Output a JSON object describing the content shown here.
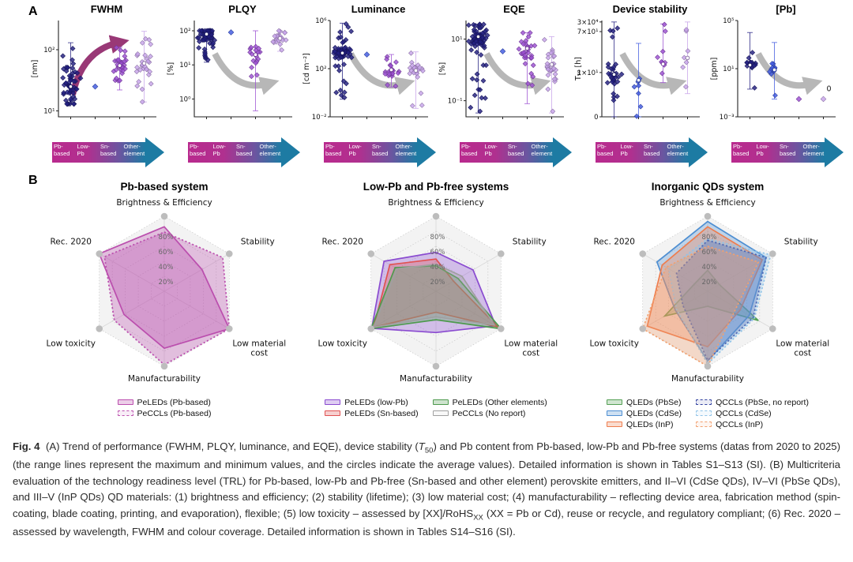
{
  "figure": {
    "panel_a_label": "A",
    "panel_b_label": "B"
  },
  "category_arrow": {
    "labels": [
      [
        "Pb-",
        "based"
      ],
      [
        "Low-",
        "Pb"
      ],
      [
        "Sn-",
        "based"
      ],
      [
        "Other-",
        "element"
      ]
    ],
    "gradient": [
      "#b92a8e",
      "#1d7ba3"
    ]
  },
  "chart_data": [
    {
      "type": "strip",
      "title": "FWHM",
      "ylabel": "[nm]",
      "yscale": "log",
      "ylim": [
        8,
        300
      ],
      "yticks": [
        {
          "v": 10,
          "label": "10¹"
        },
        {
          "v": 100,
          "label": "10²"
        }
      ],
      "trend": "up",
      "trend_color": "#8e2368",
      "groups": [
        {
          "category": "Pb-based",
          "color": "#221e80",
          "min": 13,
          "max": 130,
          "avg": 25,
          "n": 55
        },
        {
          "category": "Low-Pb",
          "color": "#3f59e0",
          "min": 25,
          "max": 25,
          "avg": 25,
          "n": 1
        },
        {
          "category": "Sn-based",
          "color": "#9c4fd2",
          "min": 22,
          "max": 110,
          "avg": 55,
          "n": 30
        },
        {
          "category": "Other-element",
          "color": "#c7a4ea",
          "min": 14,
          "max": 200,
          "avg": 60,
          "n": 28
        }
      ]
    },
    {
      "type": "strip",
      "title": "PLQY",
      "ylabel": "[%]",
      "yscale": "log",
      "ylim": [
        0.3,
        200
      ],
      "yticks": [
        {
          "v": 1,
          "label": "10⁰"
        },
        {
          "v": 10,
          "label": "10¹"
        },
        {
          "v": 100,
          "label": "10²"
        }
      ],
      "trend": "down",
      "trend_color": "#b0b0b0",
      "groups": [
        {
          "category": "Pb-based",
          "color": "#221e80",
          "min": 12,
          "max": 100,
          "avg": 80,
          "n": 70
        },
        {
          "category": "Low-Pb",
          "color": "#3f59e0",
          "min": 90,
          "max": 90,
          "avg": 90,
          "n": 1
        },
        {
          "category": "Sn-based",
          "color": "#9c4fd2",
          "min": 0.45,
          "max": 100,
          "avg": 20,
          "n": 18
        },
        {
          "category": "Other-element",
          "color": "#c7a4ea",
          "min": 25,
          "max": 100,
          "avg": 60,
          "n": 22
        }
      ]
    },
    {
      "type": "strip",
      "title": "Luminance",
      "ylabel": "[cd m⁻²]",
      "yscale": "log",
      "ylim": [
        0.01,
        1000000
      ],
      "yticks": [
        {
          "v": 0.01,
          "label": "10⁻²"
        },
        {
          "v": 100,
          "label": "10²"
        },
        {
          "v": 1000000,
          "label": "10⁶"
        }
      ],
      "trend": "down",
      "trend_color": "#b0b0b0",
      "groups": [
        {
          "category": "Pb-based",
          "color": "#221e80",
          "min": 0.3,
          "max": 600000,
          "avg": 2000,
          "n": 75
        },
        {
          "category": "Low-Pb",
          "color": "#3f59e0",
          "min": 1500,
          "max": 1500,
          "avg": 1500,
          "n": 1
        },
        {
          "category": "Sn-based",
          "color": "#9c4fd2",
          "min": 3,
          "max": 1500,
          "avg": 80,
          "n": 22
        },
        {
          "category": "Other-element",
          "color": "#c7a4ea",
          "min": 0.05,
          "max": 2500,
          "avg": 70,
          "n": 26
        }
      ]
    },
    {
      "type": "strip",
      "title": "EQE",
      "ylabel": "[%]",
      "yscale": "log",
      "ylim": [
        0.03,
        40
      ],
      "yticks": [
        {
          "v": 0.1,
          "label": "10⁻¹"
        },
        {
          "v": 10,
          "label": "10¹"
        }
      ],
      "trend": "down",
      "trend_color": "#b0b0b0",
      "groups": [
        {
          "category": "Pb-based",
          "color": "#221e80",
          "min": 0.04,
          "max": 30,
          "avg": 12,
          "n": 75
        },
        {
          "category": "Low-Pb",
          "color": "#3f59e0",
          "min": 4,
          "max": 4,
          "avg": 4,
          "n": 1
        },
        {
          "category": "Sn-based",
          "color": "#9c4fd2",
          "min": 0.08,
          "max": 16,
          "avg": 5,
          "n": 30
        },
        {
          "category": "Other-element",
          "color": "#c7a4ea",
          "min": 0.04,
          "max": 12,
          "avg": 1.5,
          "n": 30
        }
      ]
    },
    {
      "type": "strip",
      "title": "Device stability",
      "ylabel": "T₅₀ [h]",
      "yscale": "broken-log",
      "ylim": [
        0.05,
        40000
      ],
      "yticks": [
        {
          "v": 30000,
          "label": "3×10⁴",
          "pos": 0.985
        },
        {
          "v": 70,
          "label": "7×10¹",
          "pos": 0.885
        },
        {
          "v": 10,
          "label": "1×10¹",
          "pos": 0.46
        },
        {
          "v": 0.05,
          "label": "0",
          "pos": 0
        }
      ],
      "trend": "down",
      "trend_color": "#b0b0b0",
      "groups": [
        {
          "category": "Pb-based",
          "color": "#221e80",
          "min": 0.05,
          "max": 30000,
          "avg": 8,
          "n": 32
        },
        {
          "category": "Low-Pb",
          "color": "#3f59e0",
          "min": 0.05,
          "max": 40,
          "avg": 4,
          "n": 8
        },
        {
          "category": "Sn-based",
          "color": "#9c4fd2",
          "min": 3,
          "max": 9000,
          "avg": 15,
          "n": 9
        },
        {
          "category": "Other-element",
          "color": "#c7a4ea",
          "min": 0.8,
          "max": 30000,
          "avg": 20,
          "n": 7
        }
      ]
    },
    {
      "type": "strip",
      "title": "[Pb]",
      "ylabel": "[ppm]",
      "yscale": "log",
      "ylim": [
        0.001,
        100000
      ],
      "yticks": [
        {
          "v": 0.001,
          "label": "10⁻³"
        },
        {
          "v": 10,
          "label": "10¹"
        },
        {
          "v": 100000,
          "label": "10⁵"
        }
      ],
      "trend": "down",
      "trend_color": "#b0b0b0",
      "annotations": [
        {
          "text": "0",
          "group": 3,
          "v": 0.03
        }
      ],
      "groups": [
        {
          "category": "Pb-based",
          "color": "#221e80",
          "min": 0.2,
          "max": 10000,
          "avg": 20,
          "n": 14
        },
        {
          "category": "Low-Pb",
          "color": "#3f59e0",
          "min": 0.03,
          "max": 1500,
          "avg": 8,
          "n": 12
        },
        {
          "category": "Sn-based",
          "color": "#9c4fd2",
          "min": 0.03,
          "max": 0.03,
          "avg": 0.03,
          "n": 1
        },
        {
          "category": "Other-element",
          "color": "#c7a4ea",
          "min": 0.03,
          "max": 0.03,
          "avg": 0.03,
          "n": 1
        }
      ]
    },
    {
      "type": "radar",
      "title": "Pb-based system",
      "axes": [
        "Brightness & Efficiency",
        "Stability",
        "Low material cost",
        "Manufacturability",
        "Low toxicity",
        "Rec. 2020"
      ],
      "rings": [
        20,
        40,
        60,
        80,
        100
      ],
      "ring_labels": [
        "20%",
        "40%",
        "60%",
        "80%"
      ],
      "series": [
        {
          "name": "PeLEDs (Pb-based)",
          "color": "#bb4fae",
          "style": "solid",
          "values": [
            86,
            58,
            100,
            76,
            62,
            100
          ]
        },
        {
          "name": "PeCCLs (Pb-based)",
          "color": "#bb4fae",
          "style": "dotted",
          "values": [
            79,
            90,
            100,
            98,
            77,
            92
          ]
        }
      ]
    },
    {
      "type": "radar",
      "title": "Low-Pb and Pb-free systems",
      "axes": [
        "Brightness & Efficiency",
        "Stability",
        "Low material cost",
        "Manufacturability",
        "Low toxicity",
        "Rec. 2020"
      ],
      "rings": [
        20,
        40,
        60,
        80,
        100
      ],
      "ring_labels": [
        "20%",
        "40%",
        "60%",
        "80%"
      ],
      "series": [
        {
          "name": "PeLEDs (low-Pb)",
          "color": "#8a4bd0",
          "style": "solid",
          "values": [
            52,
            57,
            92,
            55,
            99,
            80
          ]
        },
        {
          "name": "PeLEDs (Sn-based)",
          "color": "#e05252",
          "style": "solid",
          "values": [
            43,
            27,
            95,
            28,
            96,
            71
          ]
        },
        {
          "name": "PeLEDs (Other elements)",
          "color": "#4e9a4e",
          "style": "solid",
          "values": [
            34,
            34,
            100,
            38,
            100,
            63
          ]
        },
        {
          "name": "PeCCLs (No report)",
          "color": "#a0a0a0",
          "style": "solid",
          "values": [
            36,
            40,
            90,
            34,
            96,
            60
          ]
        }
      ]
    },
    {
      "type": "radar",
      "title": "Inorganic QDs system",
      "axes": [
        "Brightness & Efficiency",
        "Stability",
        "Low material cost",
        "Manufacturability",
        "Low toxicity",
        "Rec. 2020"
      ],
      "rings": [
        20,
        40,
        60,
        80,
        100
      ],
      "ring_labels": [
        "20%",
        "40%",
        "60%",
        "80%"
      ],
      "series": [
        {
          "name": "QLEDs (PbSe)",
          "color": "#55a055",
          "style": "solid",
          "values": [
            28,
            18,
            78,
            20,
            66,
            20
          ]
        },
        {
          "name": "QLEDs (CdSe)",
          "color": "#4f8fd2",
          "style": "solid",
          "values": [
            93,
            90,
            64,
            93,
            50,
            78
          ]
        },
        {
          "name": "QLEDs (InP)",
          "color": "#ee7d4e",
          "style": "solid",
          "values": [
            86,
            84,
            50,
            74,
            93,
            70
          ]
        },
        {
          "name": "QCCLs (PbSe, no report)",
          "color": "#2d3d9e",
          "style": "dotted",
          "values": [
            68,
            90,
            70,
            92,
            38,
            48
          ]
        },
        {
          "name": "QCCLs (CdSe)",
          "color": "#8fc3e8",
          "style": "dotted",
          "values": [
            70,
            97,
            72,
            97,
            48,
            60
          ]
        },
        {
          "name": "QCCLs (InP)",
          "color": "#f2a06e",
          "style": "dotted",
          "values": [
            60,
            78,
            44,
            100,
            100,
            64
          ]
        }
      ]
    }
  ],
  "caption": {
    "segments": [
      {
        "t": "Fig. 4",
        "b": true
      },
      {
        "t": "  (A) Trend of performance (FWHM, PLQY, luminance, and EQE), device stability ("
      },
      {
        "t": "T",
        "i": true
      },
      {
        "t": "50",
        "sub": true
      },
      {
        "t": ") and Pb content from Pb-based, low-Pb and Pb-free systems (datas from 2020 to 2025) (the range lines represent the maximum and minimum values, and the circles indicate the average values). Detailed information is shown in Tables S1–S13 (SI). (B) Multicriteria evaluation of the technology readiness level (TRL) for Pb-based, low-Pb and Pb-free (Sn-based and other element) perovskite emitters, and II–VI (CdSe QDs), IV–VI (PbSe QDs), and III–V (InP QDs) QD materials: (1) brightness and efficiency; (2) stability (lifetime); (3) low material cost; (4) manufacturability – reflecting device area, fabrication method (spin-coating, blade coating, printing, and evaporation), flexible; (5) low toxicity – assessed by [XX]/RoHS"
      },
      {
        "t": "XX",
        "sub": true
      },
      {
        "t": " (XX = Pb or Cd), reuse or recycle, and regulatory compliant; (6) Rec. 2020 – assessed by wavelength, FWHM and colour coverage. Detailed information is shown in Tables S14–S16 (SI)."
      }
    ]
  }
}
